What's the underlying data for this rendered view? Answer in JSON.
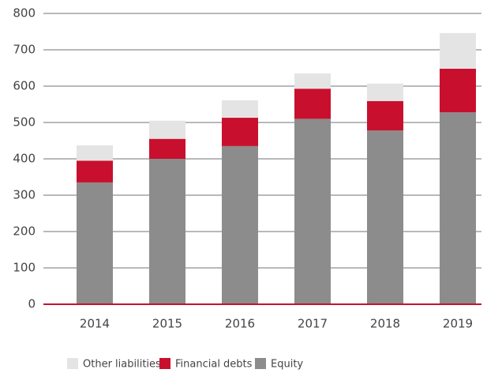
{
  "chart_data": {
    "type": "bar",
    "stacked": true,
    "categories": [
      "2014",
      "2015",
      "2016",
      "2017",
      "2018",
      "2019"
    ],
    "series": [
      {
        "name": "Other liabilities",
        "color": "#e4e4e4",
        "values": [
          42,
          50,
          48,
          42,
          48,
          98
        ]
      },
      {
        "name": "Financial debts",
        "color": "#c8102e",
        "values": [
          60,
          55,
          78,
          83,
          81,
          120
        ]
      },
      {
        "name": "Equity",
        "color": "#8c8c8c",
        "values": [
          335,
          400,
          435,
          510,
          478,
          528
        ]
      }
    ],
    "ylim": [
      0,
      800
    ],
    "yticks": [
      0,
      100,
      200,
      300,
      400,
      500,
      600,
      700,
      800
    ],
    "grid": true,
    "legend": "bottom"
  }
}
